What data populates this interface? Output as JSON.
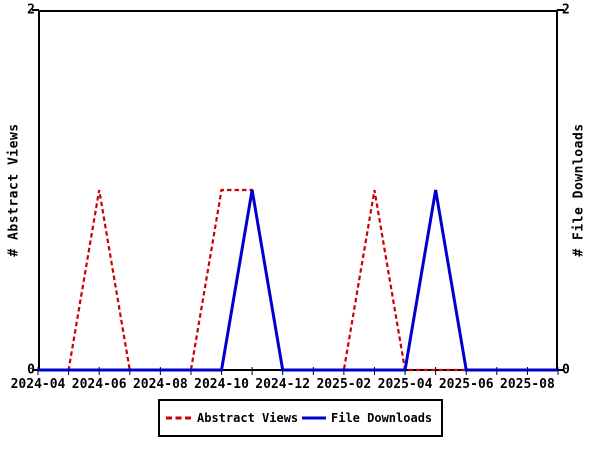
{
  "chart_data": {
    "type": "line",
    "title": "",
    "x_axis": {
      "months": [
        "2024-04",
        "2024-05",
        "2024-06",
        "2024-07",
        "2024-08",
        "2024-09",
        "2024-10",
        "2024-11",
        "2024-12",
        "2025-01",
        "2025-02",
        "2025-03",
        "2025-04",
        "2025-05",
        "2025-06",
        "2025-07",
        "2025-08",
        "2025-09"
      ],
      "tick_labels": [
        "2024-04",
        "2024-06",
        "2024-08",
        "2024-10",
        "2024-12",
        "2025-02",
        "2025-04",
        "2025-06",
        "2025-08"
      ],
      "minor_ticks": "every month"
    },
    "left_axis": {
      "label": "# Abstract Views",
      "min": 0,
      "max": 2,
      "tick_labels": [
        "0",
        "2"
      ]
    },
    "right_axis": {
      "label": "# File Downloads",
      "min": 0,
      "max": 2,
      "tick_labels": [
        "0",
        "2"
      ]
    },
    "series": [
      {
        "name": "Abstract Views",
        "color": "#cc0000",
        "style": "dashed",
        "axis": "left",
        "values": [
          0,
          0,
          1,
          0,
          0,
          0,
          1,
          1,
          0,
          0,
          0,
          1,
          0,
          0,
          0,
          0,
          0,
          0
        ]
      },
      {
        "name": "File Downloads",
        "color": "#0000cc",
        "style": "solid",
        "axis": "right",
        "values": [
          0,
          0,
          0,
          0,
          0,
          0,
          0,
          1,
          0,
          0,
          0,
          0,
          0,
          1,
          0,
          0,
          0,
          0
        ]
      }
    ],
    "legend": {
      "position": "bottom-center",
      "entries": [
        "Abstract Views",
        "File Downloads"
      ]
    },
    "grid": "off"
  }
}
